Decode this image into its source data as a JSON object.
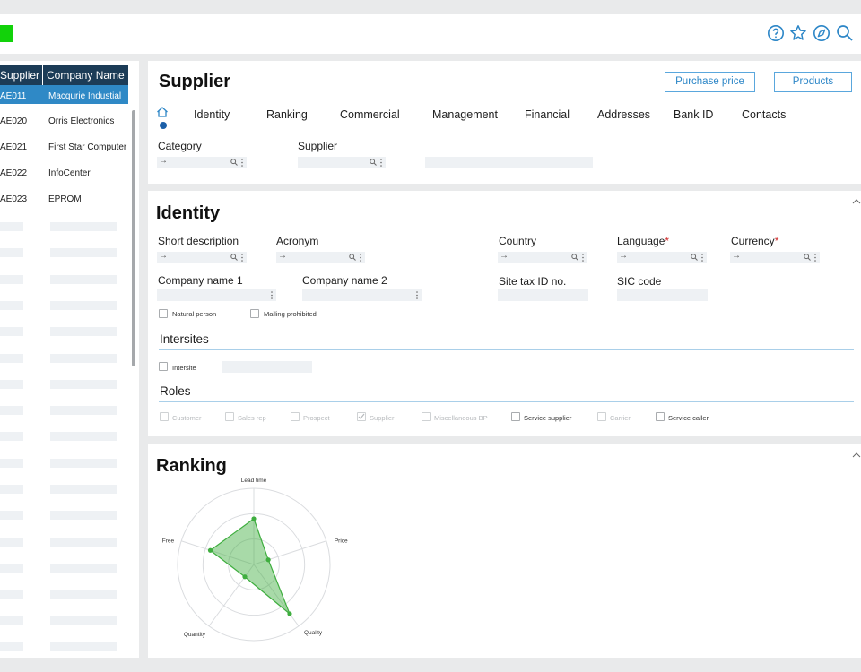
{
  "header": {
    "icons": [
      "help-icon",
      "star-icon",
      "compass-icon",
      "search-icon"
    ],
    "brand_color": "#12d20a"
  },
  "list": {
    "columns": [
      "Supplier",
      "Company Name"
    ],
    "rows": [
      {
        "code": "AE011",
        "name": "Macqurie Industial",
        "selected": true
      },
      {
        "code": "AE020",
        "name": "Orris Electronics",
        "selected": false
      },
      {
        "code": "AE021",
        "name": "First Star Computer",
        "selected": false
      },
      {
        "code": "AE022",
        "name": "InfoCenter",
        "selected": false
      },
      {
        "code": "AE023",
        "name": "EPROM",
        "selected": false
      }
    ]
  },
  "supplier": {
    "title": "Supplier",
    "buttons": {
      "purchase_price": "Purchase price",
      "products": "Products"
    },
    "tabs": [
      "Identity",
      "Ranking",
      "Commercial",
      "Management",
      "Financial",
      "Addresses",
      "Bank ID",
      "Contacts"
    ],
    "category_label": "Category",
    "supplier_label": "Supplier",
    "field_arrow": "→"
  },
  "identity": {
    "title": "Identity",
    "labels": {
      "short_description": "Short description",
      "acronym": "Acronym",
      "country": "Country",
      "language": "Language",
      "currency": "Currency",
      "company_name_1": "Company name 1",
      "company_name_2": "Company name 2",
      "site_tax_id": "Site tax ID no.",
      "sic_code": "SIC code"
    },
    "required_marker": "*",
    "checkboxes": {
      "natural_person": "Natural person",
      "mailing_prohibited": "Mailing prohibited"
    },
    "intersites_title": "Intersites",
    "intersite_label": "Intersite",
    "roles_title": "Roles",
    "roles": [
      {
        "label": "Customer",
        "enabled": false,
        "checked": false
      },
      {
        "label": "Sales rep",
        "enabled": false,
        "checked": false
      },
      {
        "label": "Prospect",
        "enabled": false,
        "checked": false
      },
      {
        "label": "Supplier",
        "enabled": false,
        "checked": true
      },
      {
        "label": "Miscellaneous BP",
        "enabled": false,
        "checked": false
      },
      {
        "label": "Service supplier",
        "enabled": true,
        "checked": false
      },
      {
        "label": "Carrier",
        "enabled": false,
        "checked": false
      },
      {
        "label": "Service caller",
        "enabled": true,
        "checked": false
      }
    ]
  },
  "ranking": {
    "title": "Ranking",
    "axes": [
      "Lead time",
      "Price",
      "Quality",
      "Quantity",
      "Free"
    ],
    "max_value": 5,
    "values": [
      3,
      1,
      4,
      1,
      3
    ],
    "accent_color": "#3fae3f"
  }
}
